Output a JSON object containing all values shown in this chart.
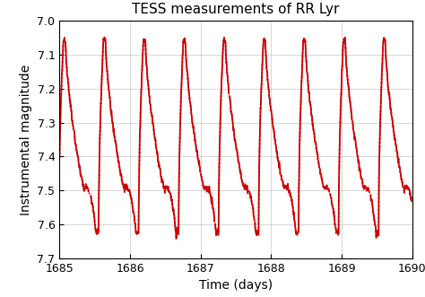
{
  "title": "TESS measurements of RR Lyr",
  "xlabel": "Time (days)",
  "ylabel": "Instrumental magnitude",
  "xlim": [
    1685,
    1690
  ],
  "ylim": [
    7.7,
    7.0
  ],
  "yticks": [
    7.0,
    7.1,
    7.2,
    7.3,
    7.4,
    7.5,
    7.6,
    7.7
  ],
  "xticks": [
    1685,
    1686,
    1687,
    1688,
    1689,
    1690
  ],
  "period": 0.5668,
  "t_start": 1685.0,
  "t_end": 1690.0,
  "mag_min": 7.63,
  "mag_max": 7.055,
  "mag_plateau": 7.495,
  "line_color": "#cc0000",
  "bg_color": "#ffffff",
  "grid_color": "#b0b0b0",
  "figsize": [
    4.74,
    3.31
  ],
  "dpi": 100
}
